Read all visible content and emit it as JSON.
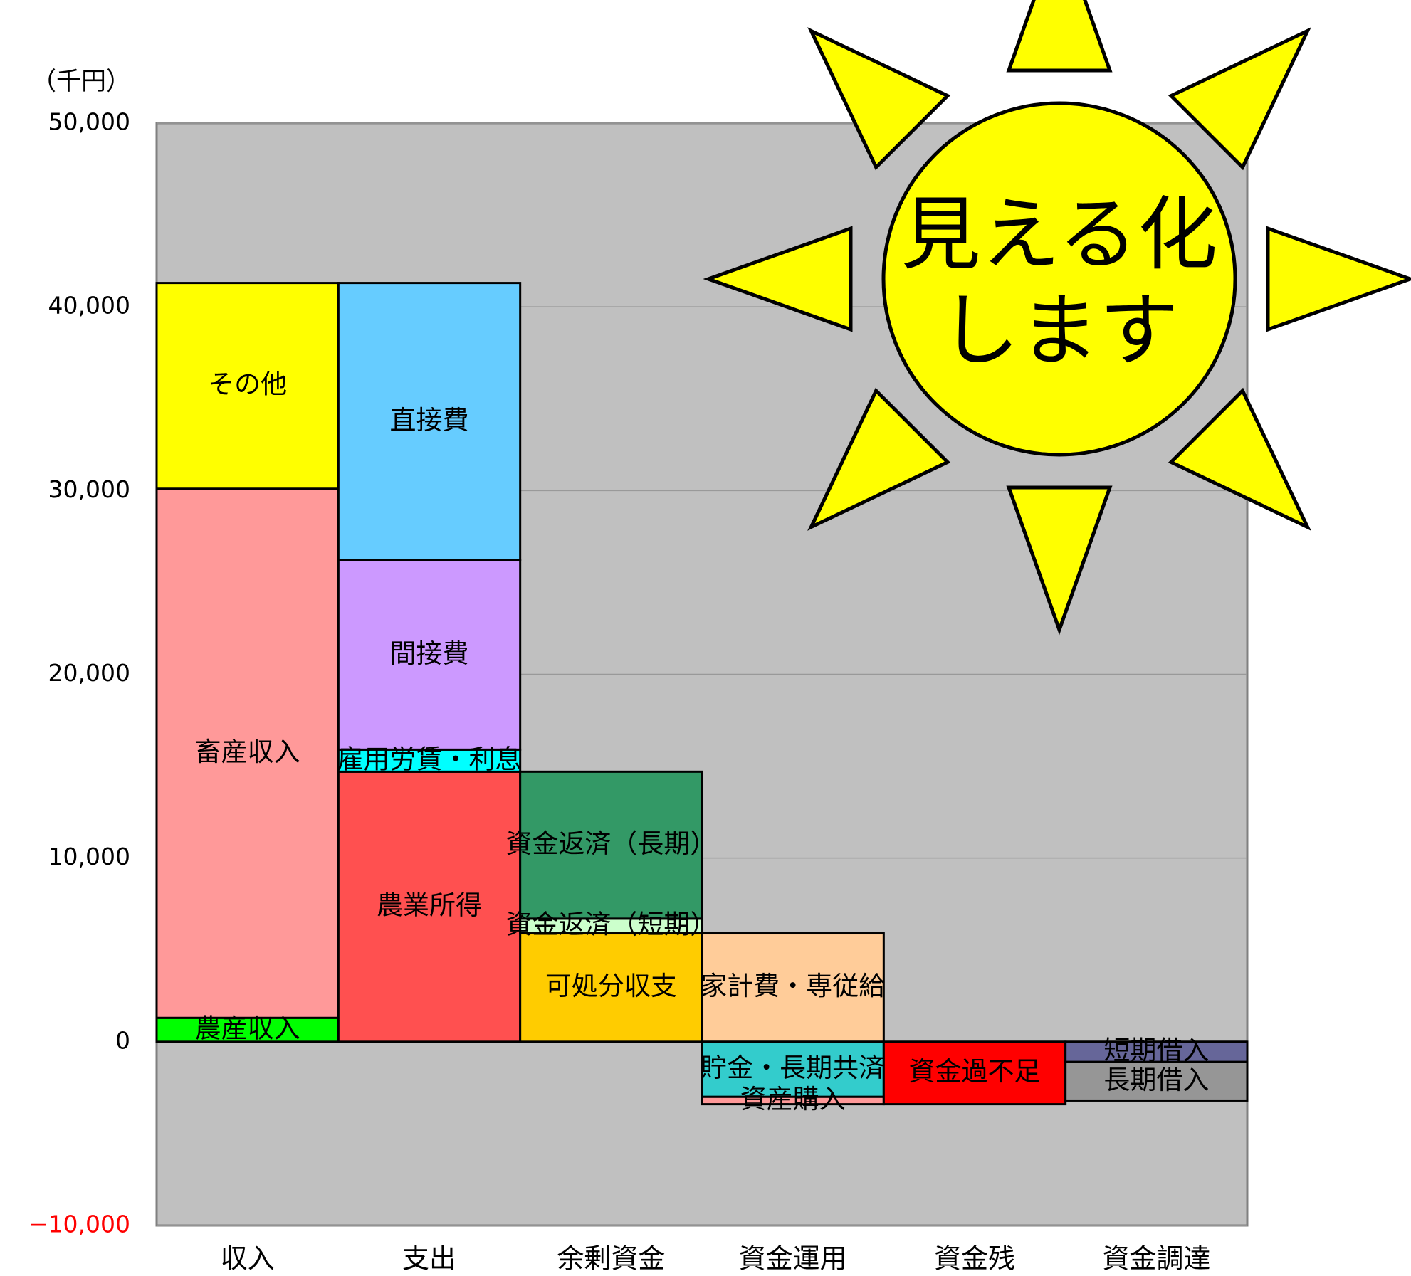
{
  "chart_data": {
    "type": "stacked_bar",
    "y_unit_label": "（千円）",
    "annotation": [
      "見える化",
      "します"
    ],
    "categories": [
      "収入",
      "支出",
      "余剰資金",
      "資金運用",
      "資金残",
      "資金調達"
    ],
    "ylim": [
      -10000,
      50000
    ],
    "yticks": [
      {
        "value": -10000,
        "label": "−10,000"
      },
      0,
      {
        "value": 10000,
        "label": "10,000"
      },
      {
        "value": 20000,
        "label": "20,000"
      },
      {
        "value": 30000,
        "label": "30,000"
      },
      {
        "value": 40000,
        "label": "40,000"
      },
      {
        "value": 50000,
        "label": "50,000"
      }
    ],
    "grid": true,
    "series": [
      {
        "name": "農産収入",
        "color": "#00ff00",
        "values": [
          1300,
          null,
          null,
          null,
          null,
          null
        ]
      },
      {
        "name": "畜産収入",
        "color": "#ff9999",
        "values": [
          28800,
          null,
          null,
          null,
          null,
          null
        ]
      },
      {
        "name": "その他",
        "color": "#ffff00",
        "values": [
          11200,
          null,
          null,
          null,
          null,
          null
        ]
      },
      {
        "name": "農業所得",
        "color": "#ff5050",
        "values": [
          null,
          14700,
          null,
          null,
          null,
          null
        ]
      },
      {
        "name": "雇用労賃・利息",
        "color": "#00ffff",
        "values": [
          null,
          1200,
          null,
          null,
          null,
          null
        ]
      },
      {
        "name": "間接費",
        "color": "#cc99ff",
        "values": [
          null,
          10300,
          null,
          null,
          null,
          null
        ]
      },
      {
        "name": "直接費",
        "color": "#66ccff",
        "values": [
          null,
          15100,
          null,
          null,
          null,
          null
        ]
      },
      {
        "name": "可処分収支",
        "color": "#ffcc00",
        "values": [
          null,
          null,
          5900,
          null,
          null,
          null
        ]
      },
      {
        "name": "資金返済（短期）",
        "color": "#ccffcc",
        "values": [
          null,
          null,
          800,
          null,
          null,
          null
        ]
      },
      {
        "name": "資金返済（長期）",
        "color": "#339966",
        "values": [
          null,
          null,
          8000,
          null,
          null,
          null
        ]
      },
      {
        "name": "家計費・専従給",
        "color": "#ffcc99",
        "values": [
          null,
          null,
          null,
          5900,
          null,
          null
        ]
      },
      {
        "name": "貯金・長期共済",
        "color": "#33cccc",
        "values": [
          null,
          null,
          null,
          -3000,
          null,
          null
        ]
      },
      {
        "name": "資産購入",
        "color": "#ff9999",
        "values": [
          null,
          null,
          null,
          -400,
          null,
          null
        ]
      },
      {
        "name": "資金過不足",
        "color": "#ff0000",
        "values": [
          null,
          null,
          null,
          null,
          -3400,
          null
        ]
      },
      {
        "name": "短期借入",
        "color": "#666699",
        "values": [
          null,
          null,
          null,
          null,
          null,
          -1100
        ]
      },
      {
        "name": "長期借入",
        "color": "#969696",
        "values": [
          null,
          null,
          null,
          null,
          null,
          -2100
        ]
      }
    ]
  }
}
